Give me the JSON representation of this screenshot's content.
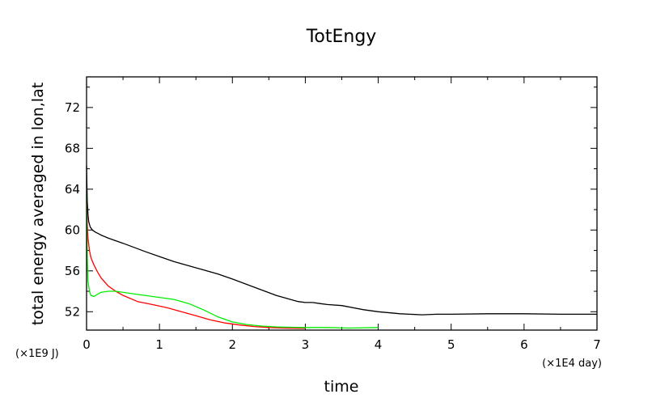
{
  "chart_data": {
    "type": "line",
    "title": "TotEngy",
    "xlabel": "time",
    "ylabel": "total energy averaged in lon,lat",
    "x_unit": "(×1E4 day)",
    "y_unit": "(×1E9 J)",
    "xlim": [
      0,
      7
    ],
    "ylim": [
      50.2,
      75
    ],
    "x_ticks": [
      "0",
      "1",
      "2",
      "3",
      "4",
      "5",
      "6",
      "7"
    ],
    "y_ticks": [
      "52",
      "56",
      "60",
      "64",
      "68",
      "72"
    ],
    "grid": false,
    "series": [
      {
        "color": "#000000",
        "x": [
          0,
          0.005,
          0.01,
          0.02,
          0.03,
          0.05,
          0.08,
          0.12,
          0.2,
          0.3,
          0.5,
          0.8,
          1.0,
          1.2,
          1.5,
          1.8,
          2.0,
          2.3,
          2.6,
          2.9,
          3.0,
          3.1,
          3.2,
          3.3,
          3.5,
          3.8,
          4.0,
          4.3,
          4.6,
          4.8,
          5.0,
          5.5,
          6.0,
          6.5,
          7.0
        ],
        "values": [
          66.3,
          64.2,
          62.8,
          61.5,
          60.8,
          60.3,
          60.0,
          59.8,
          59.5,
          59.2,
          58.7,
          57.9,
          57.4,
          56.9,
          56.3,
          55.7,
          55.2,
          54.4,
          53.6,
          53.0,
          52.9,
          52.9,
          52.8,
          52.7,
          52.6,
          52.2,
          52.0,
          51.8,
          51.7,
          51.75,
          51.75,
          51.8,
          51.8,
          51.75,
          51.75
        ]
      },
      {
        "color": "#ff0000",
        "x": [
          0,
          0.01,
          0.02,
          0.04,
          0.06,
          0.1,
          0.15,
          0.2,
          0.3,
          0.4,
          0.5,
          0.7,
          0.9,
          1.1,
          1.3,
          1.5,
          1.7,
          1.9,
          2.1,
          2.3,
          2.5,
          2.7,
          2.9,
          3.0
        ],
        "values": [
          62.8,
          60.5,
          59.2,
          58.0,
          57.3,
          56.6,
          55.9,
          55.3,
          54.5,
          54.0,
          53.6,
          53.0,
          52.7,
          52.4,
          52.0,
          51.6,
          51.2,
          50.9,
          50.7,
          50.55,
          50.45,
          50.4,
          50.38,
          50.37
        ]
      },
      {
        "color": "#00ee00",
        "x": [
          0,
          0.01,
          0.02,
          0.04,
          0.06,
          0.1,
          0.15,
          0.2,
          0.3,
          0.4,
          0.6,
          0.8,
          1.0,
          1.2,
          1.4,
          1.6,
          1.8,
          2.0,
          2.2,
          2.4,
          2.6,
          2.8,
          3.0,
          3.3,
          3.6,
          4.0
        ],
        "values": [
          63.5,
          57.2,
          55.0,
          54.0,
          53.6,
          53.5,
          53.7,
          53.9,
          54.0,
          54.0,
          53.8,
          53.6,
          53.4,
          53.2,
          52.8,
          52.2,
          51.5,
          51.0,
          50.75,
          50.6,
          50.52,
          50.48,
          50.45,
          50.45,
          50.4,
          50.45
        ]
      }
    ]
  }
}
